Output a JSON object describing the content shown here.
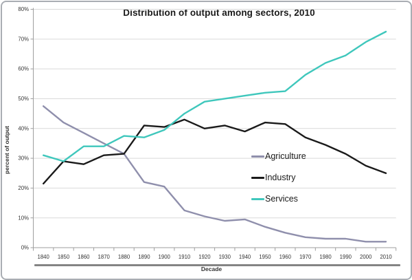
{
  "chart_data": {
    "type": "line",
    "title": "Distribution of output among sectors, 2010",
    "xlabel": "Decade",
    "ylabel": "percent of output",
    "ylim": [
      0,
      80
    ],
    "grid": "horizontal",
    "legend_position": "middle-right",
    "y_ticks": [
      {
        "label": "0%",
        "value": 0
      },
      {
        "label": "10%",
        "value": 10
      },
      {
        "label": "20%",
        "value": 20
      },
      {
        "label": "30%",
        "value": 30
      },
      {
        "label": "40%",
        "value": 40
      },
      {
        "label": "50%",
        "value": 50
      },
      {
        "label": "60%",
        "value": 60
      },
      {
        "label": "70%",
        "value": 70
      },
      {
        "label": "80%",
        "value": 80
      }
    ],
    "categories": [
      "1840",
      "1850",
      "1860",
      "1870",
      "1880",
      "1890",
      "1900",
      "1910",
      "1920",
      "1930",
      "1940",
      "1950",
      "1960",
      "1970",
      "1980",
      "1990",
      "2000",
      "2010"
    ],
    "series": [
      {
        "name": "Agriculture",
        "color": "#8F8FAC",
        "values": [
          47.5,
          42,
          38.5,
          35,
          31.5,
          22,
          20.5,
          12.5,
          10.5,
          9,
          9.5,
          7,
          5,
          3.5,
          3,
          3,
          2,
          2
        ]
      },
      {
        "name": "Industry",
        "color": "#1A1A1A",
        "values": [
          21.5,
          29,
          28,
          31,
          31.5,
          41,
          40.5,
          43,
          40,
          41,
          39,
          42,
          41.5,
          37,
          34.5,
          31.5,
          27.5,
          25
        ]
      },
      {
        "name": "Services",
        "color": "#3FC7BC",
        "values": [
          31,
          29,
          34,
          34,
          37.5,
          37,
          39.5,
          45,
          49,
          50,
          51,
          52,
          52.5,
          58,
          62,
          64.5,
          69,
          72.5
        ]
      }
    ]
  }
}
